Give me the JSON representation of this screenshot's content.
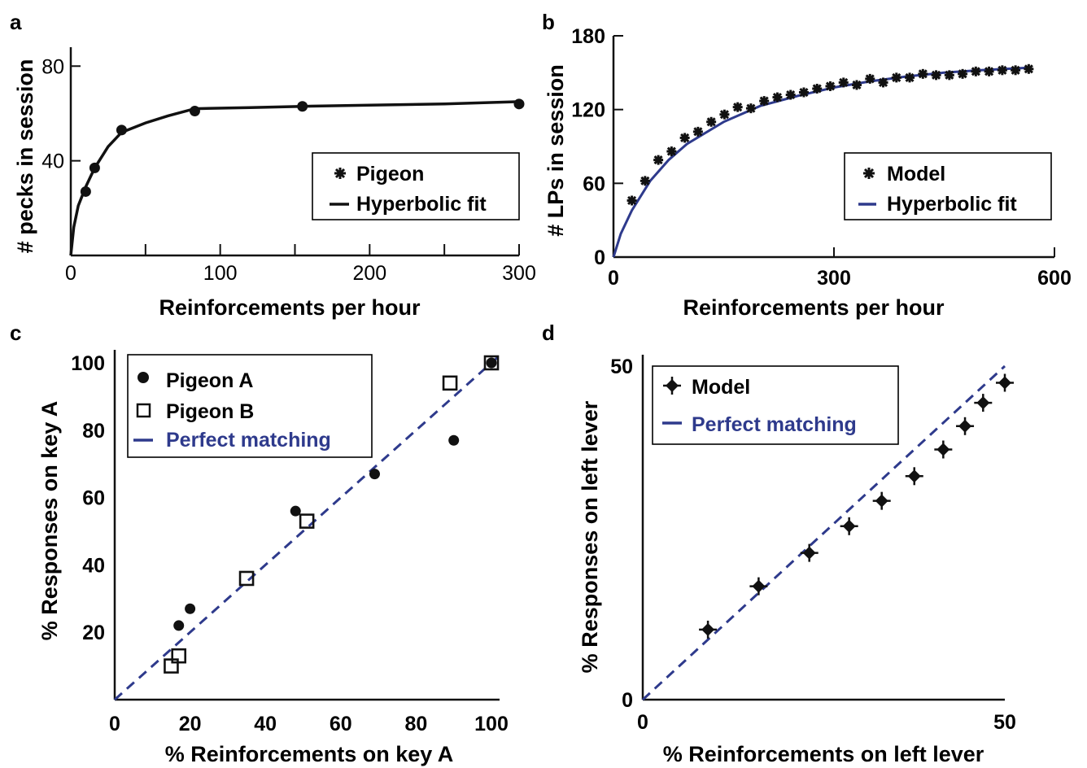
{
  "colors": {
    "blue": "#2e3a8c",
    "black": "#111111"
  },
  "panels": {
    "a": {
      "label": "a",
      "xlabel": "Reinforcements per hour",
      "ylabel": "# pecks in session",
      "xticks": [
        "0",
        "100",
        "200",
        "300"
      ],
      "yticks": [
        "40",
        "80"
      ],
      "legend": [
        "Pigeon",
        "Hyperbolic fit"
      ]
    },
    "b": {
      "label": "b",
      "xlabel": "Reinforcements per hour",
      "ylabel": "# LPs in session",
      "xticks": [
        "0",
        "300",
        "600"
      ],
      "yticks": [
        "0",
        "60",
        "120",
        "180"
      ],
      "legend": [
        "Model",
        "Hyperbolic fit"
      ]
    },
    "c": {
      "label": "c",
      "xlabel": "% Reinforcements on key A",
      "ylabel": "% Responses on key A",
      "xticks": [
        "0",
        "20",
        "40",
        "60",
        "80",
        "100"
      ],
      "yticks": [
        "20",
        "40",
        "60",
        "80",
        "100"
      ],
      "legend": [
        "Pigeon A",
        "Pigeon B",
        "Perfect matching"
      ]
    },
    "d": {
      "label": "d",
      "xlabel": "% Reinforcements on left lever",
      "ylabel": "% Responses on left lever",
      "xticks": [
        "0",
        "50"
      ],
      "yticks": [
        "0",
        "50"
      ],
      "legend": [
        "Model",
        "Perfect matching"
      ]
    }
  },
  "chart_data": [
    {
      "panel": "a",
      "type": "scatter",
      "xlabel": "Reinforcements per hour",
      "ylabel": "# pecks in session",
      "xlim": [
        0,
        300
      ],
      "ylim": [
        0,
        88
      ],
      "series": [
        {
          "name": "Pigeon",
          "x": [
            10,
            16,
            34,
            83,
            155,
            300
          ],
          "y": [
            27,
            37,
            53,
            61,
            63,
            64
          ]
        },
        {
          "name": "Hyperbolic fit",
          "type": "line",
          "x": [
            0,
            2,
            5,
            10,
            16,
            25,
            34,
            50,
            65,
            83,
            120,
            155,
            200,
            250,
            300
          ],
          "y": [
            0,
            12,
            21,
            29,
            37,
            46,
            52,
            56,
            59,
            62,
            62.5,
            63,
            63.5,
            64,
            65
          ]
        }
      ],
      "legend_position": "right"
    },
    {
      "panel": "b",
      "type": "scatter",
      "xlabel": "Reinforcements per hour",
      "ylabel": "# LPs in session",
      "xlim": [
        0,
        600
      ],
      "ylim": [
        0,
        180
      ],
      "series": [
        {
          "name": "Model",
          "x": [
            25,
            43,
            61,
            79,
            97,
            115,
            133,
            151,
            169,
            187,
            205,
            223,
            241,
            259,
            277,
            295,
            313,
            331,
            349,
            367,
            385,
            403,
            421,
            439,
            457,
            475,
            493,
            511,
            529,
            547,
            565
          ],
          "y": [
            46,
            62,
            79,
            86,
            97,
            102,
            110,
            116,
            122,
            121,
            127,
            130,
            132,
            134,
            137,
            139,
            142,
            140,
            145,
            142,
            146,
            146,
            149,
            148,
            148,
            149,
            151,
            151,
            152,
            152,
            153
          ]
        },
        {
          "name": "Hyperbolic fit",
          "type": "line",
          "x": [
            0,
            10,
            25,
            50,
            75,
            100,
            150,
            200,
            250,
            300,
            350,
            400,
            450,
            500,
            565
          ],
          "y": [
            0,
            19,
            38,
            62,
            79,
            92,
            110,
            123,
            131,
            138,
            143,
            147,
            150,
            152,
            154
          ]
        }
      ],
      "legend_position": "right"
    },
    {
      "panel": "c",
      "type": "scatter",
      "xlabel": "% Reinforcements on key A",
      "ylabel": "% Responses on key A",
      "xlim": [
        0,
        100
      ],
      "ylim": [
        0,
        100
      ],
      "series": [
        {
          "name": "Pigeon A",
          "x": [
            17,
            20,
            48,
            69,
            90,
            100
          ],
          "y": [
            22,
            27,
            56,
            67,
            77,
            100
          ]
        },
        {
          "name": "Pigeon B",
          "x": [
            15,
            17,
            35,
            51,
            89,
            100
          ],
          "y": [
            10,
            13,
            36,
            53,
            94,
            100
          ]
        },
        {
          "name": "Perfect matching",
          "type": "line",
          "x": [
            0,
            103
          ],
          "y": [
            0,
            103
          ]
        }
      ],
      "legend_position": "top-left"
    },
    {
      "panel": "d",
      "type": "scatter",
      "xlabel": "% Reinforcements on left lever",
      "ylabel": "% Responses on left lever",
      "xlim": [
        0,
        50
      ],
      "ylim": [
        0,
        50
      ],
      "series": [
        {
          "name": "Model",
          "x": [
            9,
            16,
            23,
            28.5,
            33,
            37.5,
            41.5,
            44.5,
            47,
            50
          ],
          "y": [
            10.5,
            17,
            22,
            26,
            29.8,
            33.5,
            37.5,
            41,
            44.5,
            47.5
          ]
        },
        {
          "name": "Perfect matching",
          "type": "line",
          "x": [
            0,
            50
          ],
          "y": [
            0,
            50
          ]
        }
      ],
      "legend_position": "top-left"
    }
  ]
}
